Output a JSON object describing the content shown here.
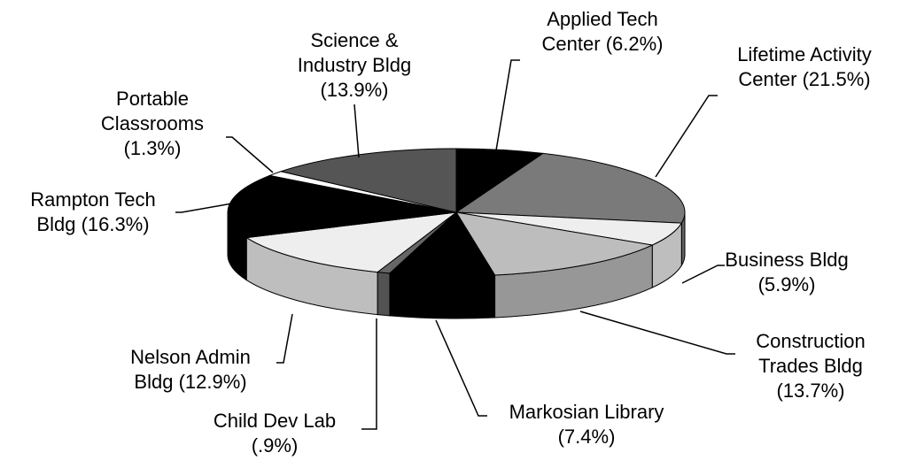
{
  "chart_data": {
    "type": "pie3d",
    "categories": [
      "Applied Tech Center",
      "Lifetime Activity Center",
      "Business Bldg",
      "Construction Trades Bldg",
      "Markosian Library",
      "Child Dev Lab",
      "Nelson Admin Bldg",
      "Rampton Tech Bldg",
      "Portable Classrooms",
      "Science & Industry Bldg"
    ],
    "values": [
      6.2,
      21.5,
      5.9,
      13.7,
      7.4,
      0.9,
      12.9,
      16.3,
      1.3,
      13.9
    ],
    "value_labels": [
      "(6.2%)",
      "(21.5%)",
      "(5.9%)",
      "(13.7%)",
      "(7.4%)",
      "(.9%)",
      "(12.9%)",
      "(16.3%)",
      "(1.3%)",
      "(13.9%)"
    ],
    "colors": [
      "#000000",
      "#7a7a7a",
      "#eeeeee",
      "#bdbdbd",
      "#000000",
      "#666666",
      "#eeeeee",
      "#000000",
      "#ffffff",
      "#555555"
    ]
  }
}
